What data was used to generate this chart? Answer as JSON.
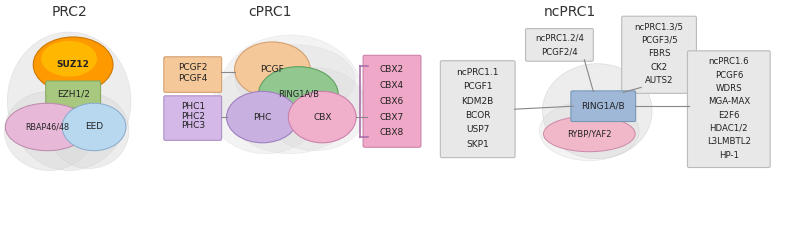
{
  "title_prc2": "PRC2",
  "title_cprc1": "cPRC1",
  "title_ncprc1": "ncPRC1",
  "bg_color": "#ffffff",
  "fig_w": 7.9,
  "fig_h": 2.49,
  "dpi": 100
}
